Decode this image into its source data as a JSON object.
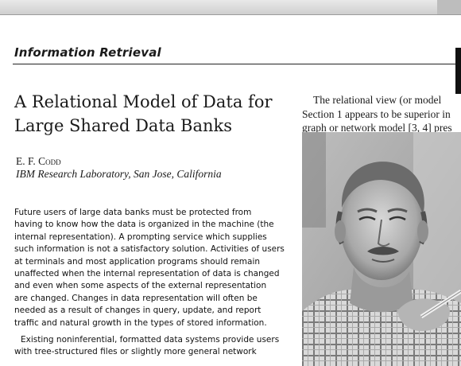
{
  "section_label": "Information Retrieval",
  "title_lines": [
    "A Relational Model of Data for",
    "Large Shared Data Banks"
  ],
  "author": "E. F. Codd",
  "affiliation": "IBM Research Laboratory, San Jose, California",
  "abstract_lines": [
    "Future users of large data banks must be protected from",
    "having to know how the data is organized in the machine (the",
    "internal representation). A prompting service which supplies",
    "such information is not a satisfactory solution. Activities of users",
    "at terminals and most application programs should remain",
    "unaffected when the internal representation of data is changed",
    "and even when some aspects of the external representation",
    "are changed. Changes in data representation will often be",
    "needed as a result of changes in query, update, and report",
    "traffic and natural growth in the types of stored information.",
    "Existing noninferential, formatted data systems provide users",
    "with tree-structured files or slightly more general network"
  ],
  "right_column_lines": [
    "The relational view (or model",
    "Section 1 appears to be superior in",
    "graph or network model [3, 4] pres"
  ],
  "photo_description_icon": "portrait-photo"
}
